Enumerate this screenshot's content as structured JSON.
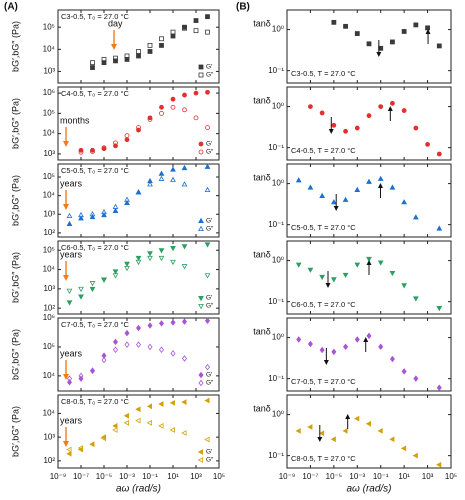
{
  "chart_data": [
    {
      "type": "scatter",
      "panel": "(A)",
      "label": "C3-0.5, T₀ = 27.0 °C",
      "age_label": "day",
      "ylabel": "bG′,bG″ (Pa)",
      "marker": "square",
      "log_x": true,
      "log_y": true,
      "xlim": [
        1e-09,
        100000
      ],
      "xticks": [
        1e-09,
        1e-07,
        1e-05,
        0.001,
        0.1,
        10,
        1000,
        100000
      ],
      "ylim": [
        300,
        600000
      ],
      "yticks": [
        {
          "value": 1000,
          "label": "10³"
        },
        {
          "value": 10000,
          "label": "10⁴"
        },
        {
          "value": 100000,
          "label": "10⁵"
        }
      ],
      "x": [
        1e-06,
        1e-05,
        0.0001,
        0.001,
        0.01,
        0.1,
        1,
        10,
        100,
        1000,
        10000
      ],
      "series": [
        {
          "name": "G′",
          "color": "#3a3a3a",
          "filled": true,
          "values": [
            1500,
            2500,
            3000,
            3500,
            5000,
            8000,
            15000,
            40000,
            100000,
            200000,
            300000
          ]
        },
        {
          "name": "G″",
          "color": "#3a3a3a",
          "filled": false,
          "values": [
            2500,
            3500,
            4000,
            5000,
            8000,
            15000,
            30000,
            60000,
            90000,
            70000,
            60000
          ]
        }
      ]
    },
    {
      "type": "scatter",
      "label": "C4-0.5, T₀ = 27.0 °C",
      "age_label": "months",
      "ylabel": "bG′,bG″ (Pa)",
      "marker": "circle",
      "log_x": true,
      "log_y": true,
      "xlim": [
        1e-09,
        100000
      ],
      "xticks": [
        1e-09,
        1e-07,
        1e-05,
        0.001,
        0.1,
        10,
        1000,
        100000
      ],
      "ylim": [
        500,
        2000000
      ],
      "yticks": [
        {
          "value": 1000,
          "label": "10³"
        },
        {
          "value": 10000,
          "label": "10⁴"
        },
        {
          "value": 100000,
          "label": "10⁵"
        },
        {
          "value": 1000000,
          "label": "10⁶"
        }
      ],
      "x": [
        1e-07,
        1e-06,
        1e-05,
        0.0001,
        0.001,
        0.01,
        0.1,
        1,
        10,
        100,
        1000,
        10000
      ],
      "series": [
        {
          "name": "G′",
          "color": "#e2302f",
          "filled": true,
          "values": [
            1500,
            1500,
            1800,
            2500,
            5000,
            15000,
            60000,
            200000,
            500000,
            800000,
            1000000,
            1100000
          ]
        },
        {
          "name": "G″",
          "color": "#e2302f",
          "filled": false,
          "values": [
            1200,
            1300,
            2000,
            3500,
            8000,
            20000,
            50000,
            100000,
            200000,
            150000,
            60000,
            20000
          ]
        }
      ]
    },
    {
      "type": "scatter",
      "label": "C5-0.5, T₀ = 27.0 °C",
      "age_label": "years",
      "ylabel": "bG′,bG″ (Pa)",
      "marker": "tri-up",
      "log_x": true,
      "log_y": true,
      "xlim": [
        1e-09,
        100000
      ],
      "xticks": [
        1e-09,
        1e-07,
        1e-05,
        0.001,
        0.1,
        10,
        1000,
        100000
      ],
      "ylim": [
        60,
        500000
      ],
      "yticks": [
        {
          "value": 100,
          "label": "10²"
        },
        {
          "value": 1000,
          "label": "10³"
        },
        {
          "value": 10000,
          "label": "10⁴"
        },
        {
          "value": 100000,
          "label": "10⁵"
        }
      ],
      "x": [
        1e-08,
        1e-07,
        1e-06,
        1e-05,
        0.0001,
        0.001,
        0.01,
        0.1,
        1,
        10,
        100,
        10000
      ],
      "series": [
        {
          "name": "G′",
          "color": "#1f6fd1",
          "filled": true,
          "values": [
            300,
            600,
            700,
            900,
            1500,
            4000,
            15000,
            60000,
            150000,
            250000,
            300000,
            350000
          ]
        },
        {
          "name": "G″",
          "color": "#1f6fd1",
          "filled": false,
          "values": [
            800,
            900,
            1000,
            1300,
            2500,
            6000,
            15000,
            40000,
            80000,
            70000,
            40000,
            20000
          ]
        }
      ]
    },
    {
      "type": "scatter",
      "label": "C6-0.5, T₀ = 27.0 °C",
      "age_label": "years",
      "ylabel": "bG′,bG″ (Pa)",
      "marker": "tri-down",
      "log_x": true,
      "log_y": true,
      "xlim": [
        1e-09,
        100000
      ],
      "xticks": [
        1e-09,
        1e-07,
        1e-05,
        0.001,
        0.1,
        10,
        1000,
        100000
      ],
      "ylim": [
        50,
        300000
      ],
      "yticks": [
        {
          "value": 100,
          "label": "10²"
        },
        {
          "value": 1000,
          "label": "10³"
        },
        {
          "value": 10000,
          "label": "10⁴"
        },
        {
          "value": 100000,
          "label": "10⁵"
        }
      ],
      "x": [
        1e-08,
        1e-07,
        1e-06,
        1e-05,
        0.0001,
        0.001,
        0.01,
        0.1,
        1,
        10,
        100,
        10000
      ],
      "series": [
        {
          "name": "G′",
          "color": "#2aa060",
          "filled": true,
          "values": [
            200,
            400,
            1000,
            3000,
            8000,
            20000,
            40000,
            70000,
            100000,
            130000,
            160000,
            200000
          ]
        },
        {
          "name": "G″",
          "color": "#2aa060",
          "filled": false,
          "values": [
            800,
            1000,
            2000,
            3000,
            5000,
            12000,
            25000,
            40000,
            40000,
            25000,
            15000,
            5000
          ]
        }
      ]
    },
    {
      "type": "scatter",
      "label": "C7-0.5, T₀ = 27.0 °C",
      "age_label": "years",
      "ylabel": "bG′,bG″ (Pa)",
      "marker": "diamond",
      "log_x": true,
      "log_y": true,
      "xlim": [
        1e-09,
        100000
      ],
      "xticks": [
        1e-09,
        1e-07,
        1e-05,
        0.001,
        0.1,
        10,
        1000,
        100000
      ],
      "ylim": [
        3000,
        1000000
      ],
      "yticks": [
        {
          "value": 10000,
          "label": "10⁴"
        },
        {
          "value": 100000,
          "label": "10⁵"
        },
        {
          "value": 1000000,
          "label": "10⁶"
        }
      ],
      "x": [
        1e-08,
        1e-07,
        1e-06,
        1e-05,
        0.0001,
        0.001,
        0.01,
        0.1,
        1,
        10,
        100,
        10000
      ],
      "series": [
        {
          "name": "G′",
          "color": "#a855d6",
          "filled": true,
          "values": [
            6000,
            8000,
            15000,
            50000,
            150000,
            300000,
            450000,
            550000,
            650000,
            700000,
            750000,
            800000
          ]
        },
        {
          "name": "G″",
          "color": "#a855d6",
          "filled": false,
          "values": [
            8000,
            10000,
            15000,
            35000,
            80000,
            120000,
            120000,
            100000,
            80000,
            60000,
            40000,
            20000
          ]
        }
      ]
    },
    {
      "type": "scatter",
      "label": "C8-0.5, T₀ = 27.0 °C",
      "age_label": "years",
      "ylabel": "bG′,bG″ (Pa)",
      "xlabel": "aω (rad/s)",
      "marker": "tri-left",
      "log_x": true,
      "log_y": true,
      "xlim": [
        1e-09,
        100000
      ],
      "xticks": [
        {
          "value": 1e-09,
          "label": "10⁻⁹"
        },
        {
          "value": 1e-07,
          "label": "10⁻⁷"
        },
        {
          "value": 1e-05,
          "label": "10⁻⁵"
        },
        {
          "value": 0.001,
          "label": "10⁻³"
        },
        {
          "value": 0.1,
          "label": "10⁻¹"
        },
        {
          "value": 10,
          "label": "10¹"
        },
        {
          "value": 1000,
          "label": "10³"
        },
        {
          "value": 100000,
          "label": "10⁵"
        }
      ],
      "ylim": [
        50,
        60000
      ],
      "yticks": [
        {
          "value": 100,
          "label": "10²"
        },
        {
          "value": 1000,
          "label": "10³"
        },
        {
          "value": 10000,
          "label": "10⁴"
        }
      ],
      "x": [
        1e-08,
        1e-07,
        1e-06,
        1e-05,
        0.0001,
        0.001,
        0.01,
        0.1,
        1,
        10,
        100,
        10000
      ],
      "series": [
        {
          "name": "G′",
          "color": "#d4a00a",
          "filled": true,
          "values": [
            200,
            300,
            500,
            1000,
            3000,
            8000,
            15000,
            20000,
            25000,
            28000,
            30000,
            35000
          ]
        },
        {
          "name": "G″",
          "color": "#d4a00a",
          "filled": false,
          "values": [
            300,
            350,
            500,
            900,
            2000,
            4000,
            5000,
            4000,
            3000,
            2000,
            1500,
            800
          ]
        }
      ]
    },
    {
      "type": "scatter",
      "panel": "(B)",
      "label": "C3-0.5, T = 27.0 °C",
      "ylabel": "tanδ",
      "marker": "square",
      "log_x": true,
      "log_y": true,
      "xlim": [
        1e-09,
        100000
      ],
      "xticks": [
        1e-09,
        1e-07,
        1e-05,
        0.001,
        0.1,
        10,
        1000,
        100000
      ],
      "ylim": [
        0.05,
        3
      ],
      "yticks": [
        {
          "value": 0.1,
          "label": "10⁻¹"
        },
        {
          "value": 1,
          "label": "10⁰"
        }
      ],
      "x": [
        1e-05,
        0.0001,
        0.001,
        0.01,
        0.1,
        1,
        10,
        100,
        1000,
        10000
      ],
      "color": "#3a3a3a",
      "values": [
        1.5,
        1.2,
        0.8,
        0.45,
        0.35,
        0.5,
        0.9,
        1.3,
        1.1,
        0.4
      ]
    },
    {
      "type": "scatter",
      "label": "C4-0.5, T = 27.0 °C",
      "ylabel": "tanδ",
      "marker": "circle",
      "log_x": true,
      "log_y": true,
      "xlim": [
        1e-09,
        100000
      ],
      "xticks": [
        1e-09,
        1e-07,
        1e-05,
        0.001,
        0.1,
        10,
        1000,
        100000
      ],
      "ylim": [
        0.05,
        3
      ],
      "yticks": [
        {
          "value": 0.1,
          "label": "10⁻¹"
        },
        {
          "value": 1,
          "label": "10⁰"
        }
      ],
      "x": [
        1e-07,
        1e-06,
        1e-05,
        0.0001,
        0.001,
        0.01,
        0.1,
        1,
        10,
        100,
        1000,
        10000
      ],
      "color": "#e2302f",
      "values": [
        1.0,
        0.7,
        0.35,
        0.25,
        0.3,
        0.6,
        1.0,
        1.2,
        0.8,
        0.3,
        0.12,
        0.07
      ]
    },
    {
      "type": "scatter",
      "label": "C5-0.5, T = 27.0 °C",
      "ylabel": "tanδ",
      "marker": "tri-up",
      "log_x": true,
      "log_y": true,
      "xlim": [
        1e-09,
        100000
      ],
      "xticks": [
        1e-09,
        1e-07,
        1e-05,
        0.001,
        0.1,
        10,
        1000,
        100000
      ],
      "ylim": [
        0.05,
        3
      ],
      "yticks": [
        {
          "value": 0.1,
          "label": "10⁻¹"
        },
        {
          "value": 1,
          "label": "10⁰"
        }
      ],
      "x": [
        1e-08,
        1e-07,
        1e-06,
        1e-05,
        0.0001,
        0.001,
        0.01,
        0.1,
        1,
        10,
        100,
        10000
      ],
      "color": "#1f6fd1",
      "values": [
        1.2,
        0.8,
        0.5,
        0.35,
        0.4,
        0.7,
        1.1,
        1.3,
        0.8,
        0.35,
        0.15,
        0.08
      ]
    },
    {
      "type": "scatter",
      "label": "C6-0.5, T = 27.0 °C",
      "ylabel": "tanδ",
      "marker": "tri-down",
      "log_x": true,
      "log_y": true,
      "xlim": [
        1e-09,
        100000
      ],
      "xticks": [
        1e-09,
        1e-07,
        1e-05,
        0.001,
        0.1,
        10,
        1000,
        100000
      ],
      "ylim": [
        0.05,
        3
      ],
      "yticks": [
        {
          "value": 0.1,
          "label": "10⁻¹"
        },
        {
          "value": 1,
          "label": "10⁰"
        }
      ],
      "x": [
        1e-08,
        1e-07,
        1e-06,
        1e-05,
        0.0001,
        0.001,
        0.01,
        0.1,
        1,
        10,
        100,
        10000
      ],
      "color": "#2aa060",
      "values": [
        0.8,
        0.6,
        0.4,
        0.35,
        0.45,
        0.8,
        1.1,
        0.9,
        0.5,
        0.25,
        0.12,
        0.07
      ]
    },
    {
      "type": "scatter",
      "label": "C7-0.5, T = 27.0 °C",
      "ylabel": "tanδ",
      "marker": "diamond",
      "log_x": true,
      "log_y": true,
      "xlim": [
        1e-09,
        100000
      ],
      "xticks": [
        1e-09,
        1e-07,
        1e-05,
        0.001,
        0.1,
        10,
        1000,
        100000
      ],
      "ylim": [
        0.05,
        3
      ],
      "yticks": [
        {
          "value": 0.1,
          "label": "10⁻¹"
        },
        {
          "value": 1,
          "label": "10⁰"
        }
      ],
      "x": [
        1e-08,
        1e-07,
        1e-06,
        1e-05,
        0.0001,
        0.001,
        0.01,
        0.1,
        1,
        10,
        100,
        10000
      ],
      "color": "#a855d6",
      "values": [
        0.9,
        0.7,
        0.5,
        0.45,
        0.6,
        0.9,
        1.1,
        0.6,
        0.3,
        0.15,
        0.1,
        0.06
      ]
    },
    {
      "type": "scatter",
      "label": "C8-0.5, T = 27.0 °C",
      "ylabel": "tanδ",
      "xlabel": "aω (rad/s)",
      "marker": "tri-left",
      "log_x": true,
      "log_y": true,
      "xlim": [
        1e-09,
        100000
      ],
      "xticks": [
        {
          "value": 1e-09,
          "label": "10⁻⁹"
        },
        {
          "value": 1e-07,
          "label": "10⁻⁷"
        },
        {
          "value": 1e-05,
          "label": "10⁻⁵"
        },
        {
          "value": 0.001,
          "label": "10⁻³"
        },
        {
          "value": 0.1,
          "label": "10⁻¹"
        },
        {
          "value": 10,
          "label": "10¹"
        },
        {
          "value": 1000,
          "label": "10³"
        },
        {
          "value": 100000,
          "label": "10⁵"
        }
      ],
      "ylim": [
        0.05,
        3
      ],
      "yticks": [
        {
          "value": 0.1,
          "label": "10⁻¹"
        },
        {
          "value": 1,
          "label": "10⁰"
        }
      ],
      "x": [
        1e-08,
        1e-07,
        1e-06,
        1e-05,
        0.0001,
        0.001,
        0.01,
        0.1,
        1,
        10,
        100,
        10000
      ],
      "color": "#d4a00a",
      "values": [
        0.4,
        0.5,
        0.35,
        0.25,
        0.4,
        0.8,
        0.6,
        0.4,
        0.25,
        0.15,
        0.1,
        0.06
      ]
    }
  ]
}
